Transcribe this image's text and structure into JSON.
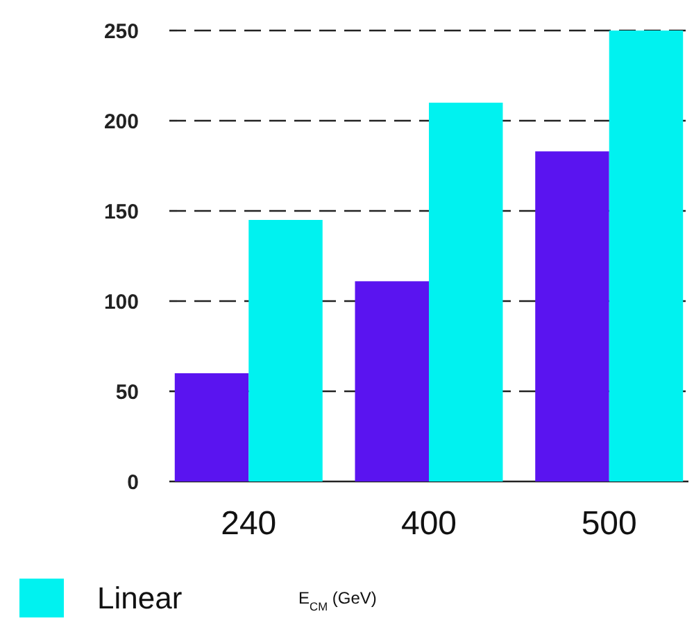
{
  "chart_data": {
    "type": "bar",
    "categories": [
      "240",
      "400",
      "500"
    ],
    "xlabel": "E$_{CM}$ (GeV)",
    "series": [
      {
        "color": "#5a14f0",
        "values": [
          60,
          111,
          183
        ]
      },
      {
        "name": "Linear",
        "color": "#00f2f0",
        "values": [
          145,
          210,
          250
        ]
      }
    ],
    "ylim": [
      0,
      250
    ],
    "yticks": [
      0,
      50,
      100,
      150,
      200,
      250
    ],
    "grid": "y",
    "legend": "bottom left"
  }
}
